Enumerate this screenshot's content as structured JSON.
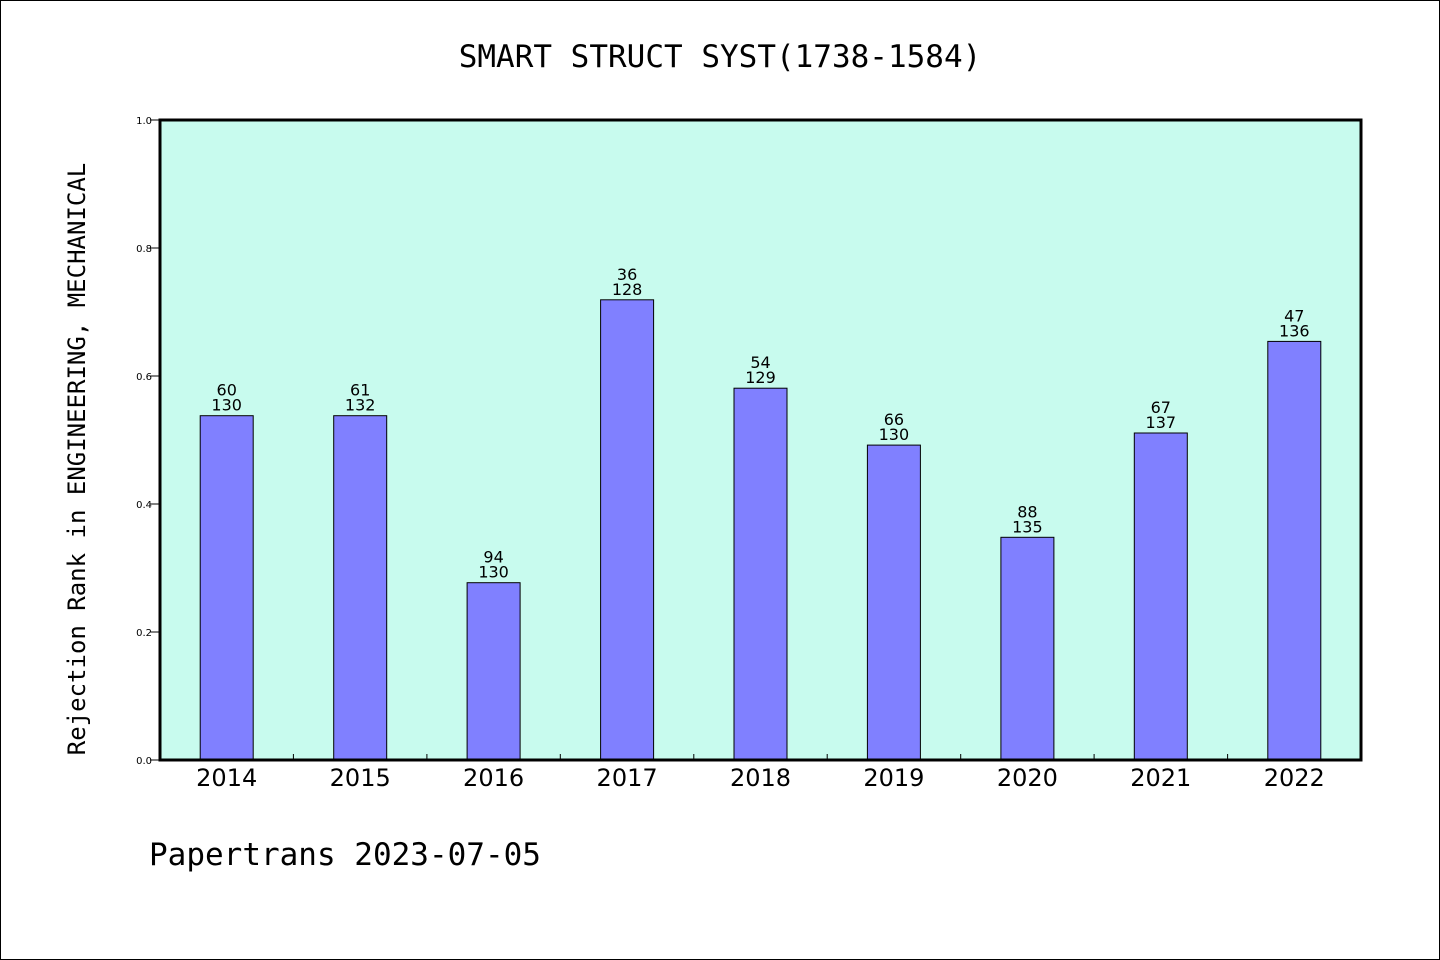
{
  "chart_data": {
    "type": "bar",
    "title": "SMART STRUCT SYST(1738-1584)",
    "ylabel": "Rejection Rank in ENGINEERING, MECHANICAL",
    "xlabel": "",
    "ylim": [
      0.0,
      1.0
    ],
    "yticks": [
      "0.0",
      "0.2",
      "0.4",
      "0.6",
      "0.8",
      "1.0"
    ],
    "ytick_values": [
      0.0,
      0.2,
      0.4,
      0.6,
      0.8,
      1.0
    ],
    "categories": [
      "2014",
      "2015",
      "2016",
      "2017",
      "2018",
      "2019",
      "2020",
      "2021",
      "2022"
    ],
    "values": [
      0.538,
      0.538,
      0.277,
      0.719,
      0.581,
      0.492,
      0.348,
      0.511,
      0.654
    ],
    "labels_top": [
      "60",
      "61",
      "94",
      "36",
      "54",
      "66",
      "88",
      "67",
      "47"
    ],
    "labels_bottom": [
      "130",
      "132",
      "130",
      "128",
      "129",
      "130",
      "135",
      "137",
      "136"
    ],
    "grid": false,
    "plot_background": "#c8fbee",
    "bar_color": "#8080ff"
  },
  "footer": "Papertrans 2023-07-05"
}
